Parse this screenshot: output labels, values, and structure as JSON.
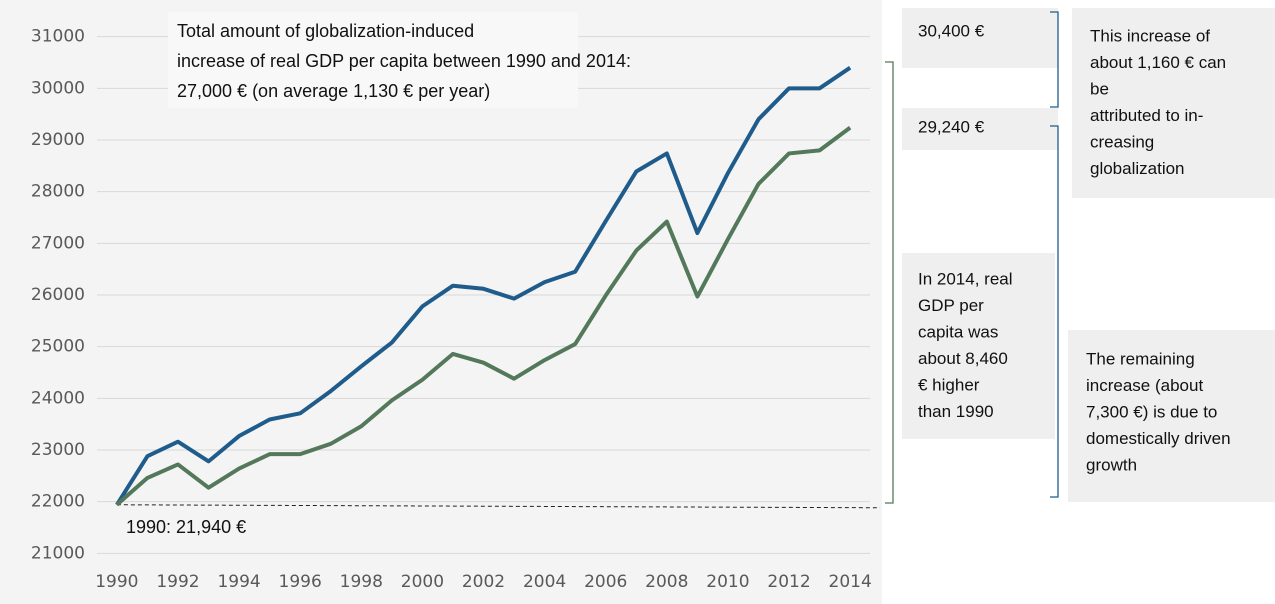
{
  "chart_data": {
    "type": "line",
    "x": [
      1990,
      1991,
      1992,
      1993,
      1994,
      1995,
      1996,
      1997,
      1998,
      1999,
      2000,
      2001,
      2002,
      2003,
      2004,
      2005,
      2006,
      2007,
      2008,
      2009,
      2010,
      2011,
      2012,
      2013,
      2014
    ],
    "series": [
      {
        "color": "#1f5c8b",
        "values": [
          21940,
          22880,
          23160,
          22780,
          23270,
          23590,
          23710,
          24140,
          24620,
          25080,
          25780,
          26180,
          26120,
          25930,
          26250,
          26450,
          27430,
          28390,
          28740,
          27200,
          28360,
          29400,
          30000,
          30000,
          30400
        ]
      },
      {
        "color": "#54785a",
        "values": [
          21940,
          22460,
          22720,
          22270,
          22640,
          22920,
          22920,
          23120,
          23460,
          23960,
          24360,
          24860,
          24690,
          24380,
          24740,
          25050,
          25990,
          26860,
          27420,
          25970,
          27080,
          28150,
          28740,
          28800,
          29240
        ]
      }
    ],
    "xlim": [
      1989.35,
      2014.65
    ],
    "xticks": [
      1990,
      1992,
      1994,
      1996,
      1998,
      2000,
      2002,
      2004,
      2006,
      2008,
      2010,
      2012,
      2014
    ],
    "ylim": [
      20600,
      31400
    ],
    "yticks": [
      21000,
      22000,
      23000,
      24000,
      25000,
      26000,
      27000,
      28000,
      29000,
      30000,
      31000
    ],
    "grid": true,
    "annotations": [
      {
        "lines": [
          "Total amount of globalization-induced",
          "increase of real GDP per capita between 1990 and 2014:",
          "27,000 € (on average 1,130 € per year)"
        ]
      },
      {
        "lines": [
          "1990: 21,940 €"
        ]
      },
      {
        "lines": [
          "30,400 €"
        ]
      },
      {
        "lines": [
          "29,240 €"
        ]
      },
      {
        "lines": [
          "In 2014, real",
          "GDP per",
          "capita was",
          "about 8,460",
          "€ higher",
          "than 1990"
        ]
      },
      {
        "lines": [
          "This increase of",
          "about 1,160 € can",
          "be",
          "attributed to in-",
          "creasing",
          "globalization"
        ]
      },
      {
        "lines": [
          "The remaining",
          "increase (about",
          "7,300 €) is due to",
          "domestically driven",
          "growth"
        ]
      }
    ]
  }
}
